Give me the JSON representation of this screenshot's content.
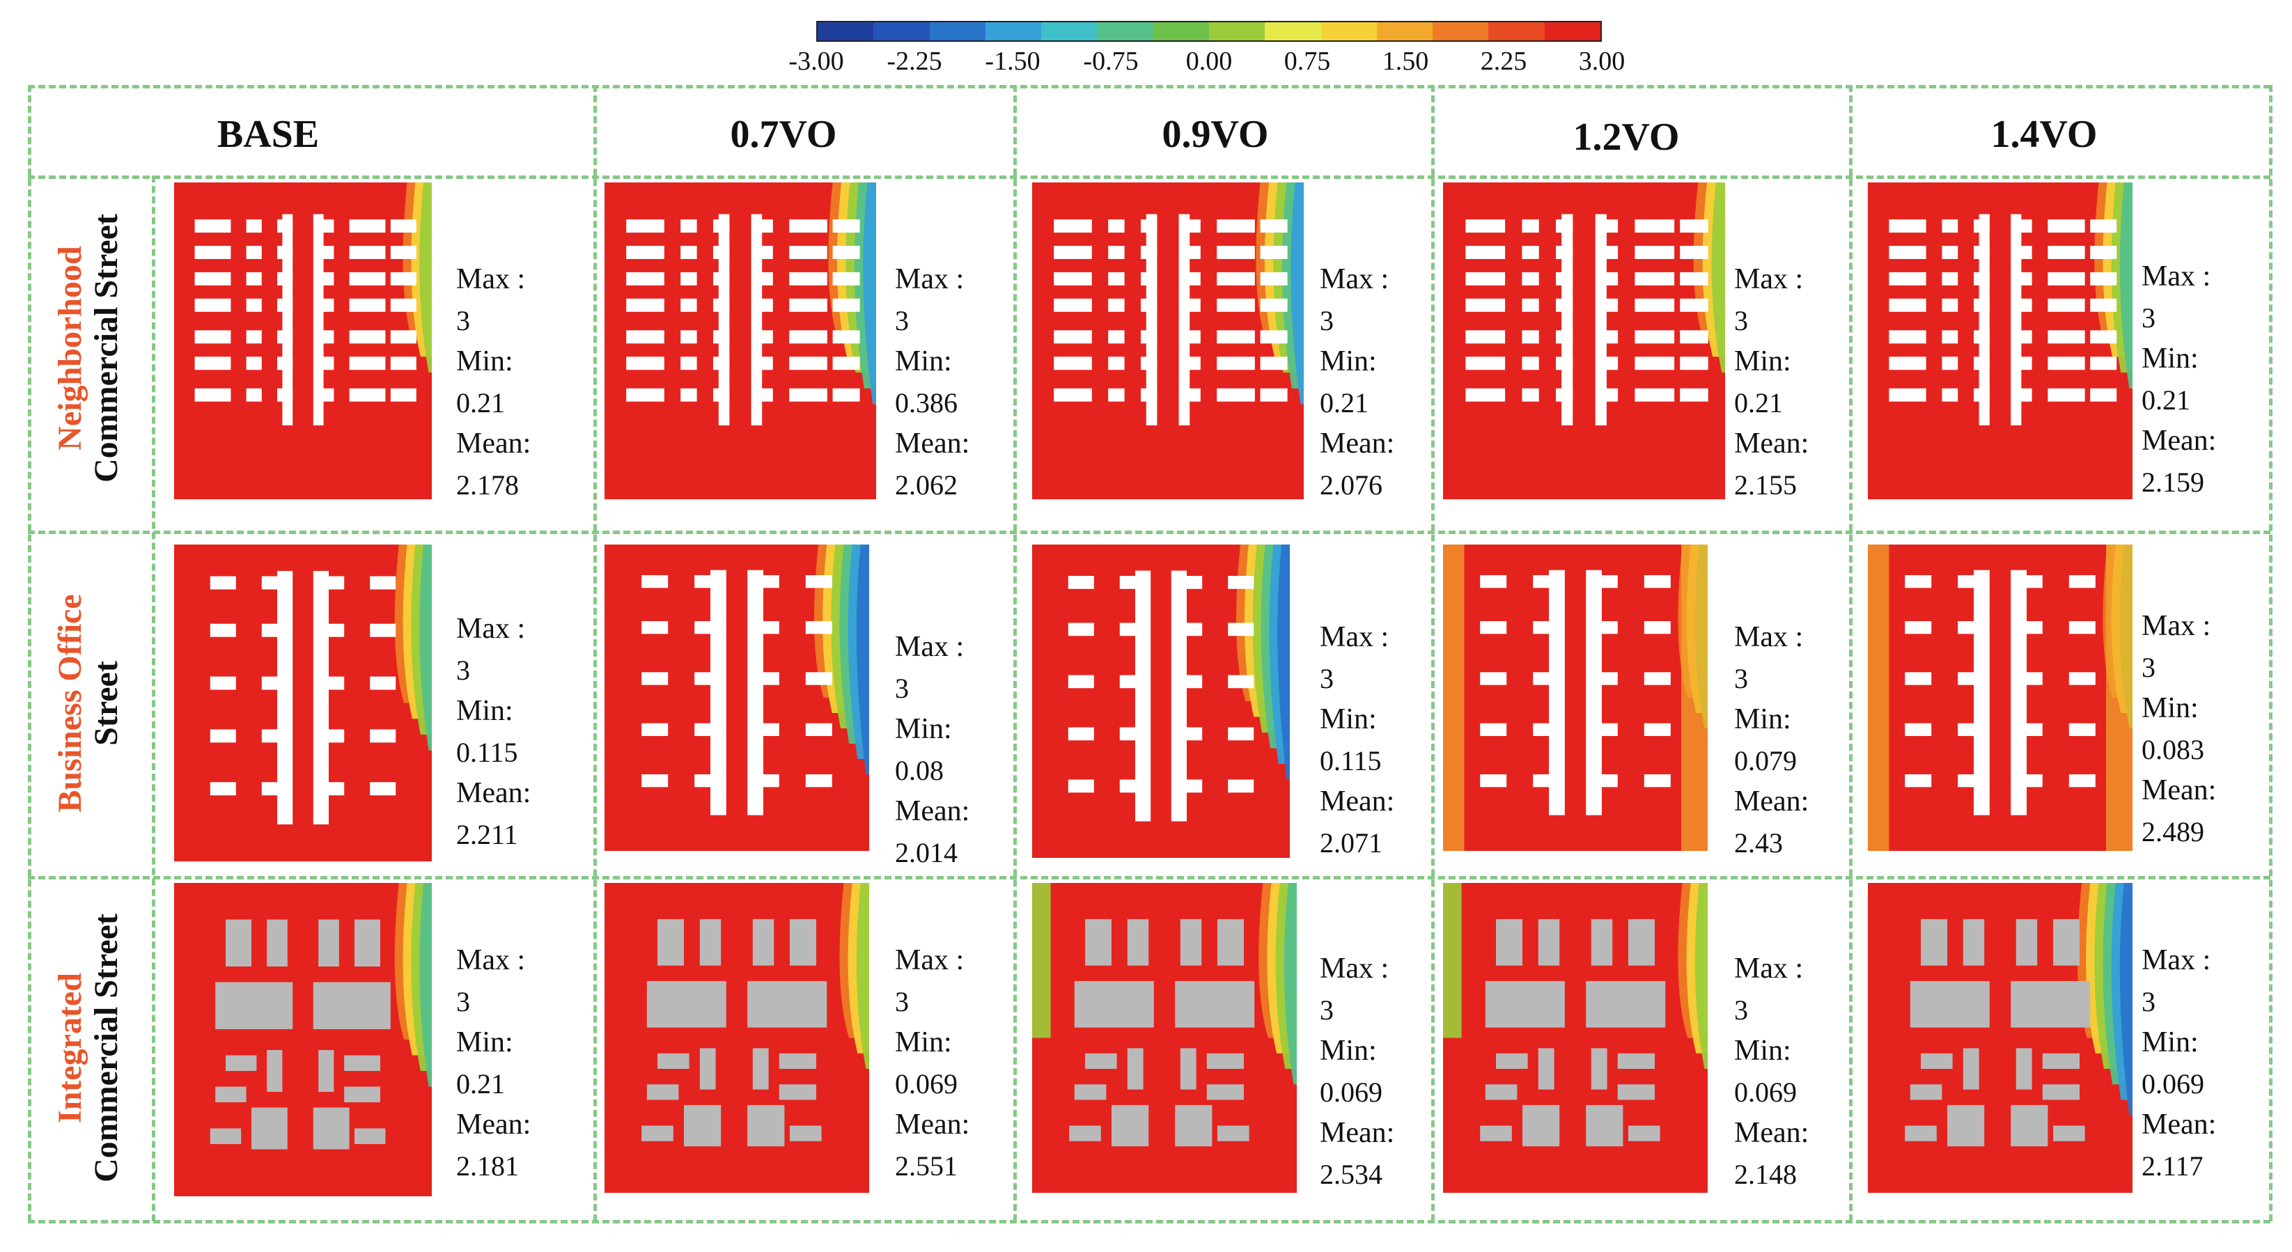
{
  "colorbar": {
    "ticks": [
      "-3.00",
      "-2.25",
      "-1.50",
      "-0.75",
      "0.00",
      "0.75",
      "1.50",
      "2.25",
      "3.00"
    ],
    "colors": [
      "#1f3f9c",
      "#2355b8",
      "#2a75cc",
      "#36a0d8",
      "#3fc0c8",
      "#56c08a",
      "#6cc24a",
      "#9ccc3a",
      "#e6e94a",
      "#f6d23a",
      "#f3a92c",
      "#ee7b25",
      "#e84a22",
      "#e4231e"
    ]
  },
  "columns": [
    "BASE",
    "0.7VO",
    "0.9VO",
    "1.2VO",
    "1.4VO"
  ],
  "row_headers": [
    {
      "line1": "Neighborhood",
      "line2": "Commercial Street"
    },
    {
      "line1": "Business Office",
      "line2": "Street"
    },
    {
      "line1": "Integrated",
      "line2": "Commercial Street"
    }
  ],
  "labels": {
    "max": "Max :",
    "min": "Min:",
    "mean": "Mean:"
  },
  "cells": [
    [
      {
        "max": "3",
        "min": "0.21",
        "mean": "2.178"
      },
      {
        "max": "3",
        "min": "0.386",
        "mean": "2.062"
      },
      {
        "max": "3",
        "min": "0.21",
        "mean": "2.076"
      },
      {
        "max": "3",
        "min": "0.21",
        "mean": "2.155"
      },
      {
        "max": "3",
        "min": "0.21",
        "mean": "2.159"
      }
    ],
    [
      {
        "max": "3",
        "min": "0.115",
        "mean": "2.211"
      },
      {
        "max": "3",
        "min": "0.08",
        "mean": "2.014"
      },
      {
        "max": "3",
        "min": "0.115",
        "mean": "2.071"
      },
      {
        "max": "3",
        "min": "0.079",
        "mean": "2.43"
      },
      {
        "max": "3",
        "min": "0.083",
        "mean": "2.489"
      }
    ],
    [
      {
        "max": "3",
        "min": "0.21",
        "mean": "2.181"
      },
      {
        "max": "3",
        "min": "0.069",
        "mean": "2.551"
      },
      {
        "max": "3",
        "min": "0.069",
        "mean": "2.534"
      },
      {
        "max": "3",
        "min": "0.069",
        "mean": "2.148"
      },
      {
        "max": "3",
        "min": "0.069",
        "mean": "2.117"
      }
    ]
  ]
}
